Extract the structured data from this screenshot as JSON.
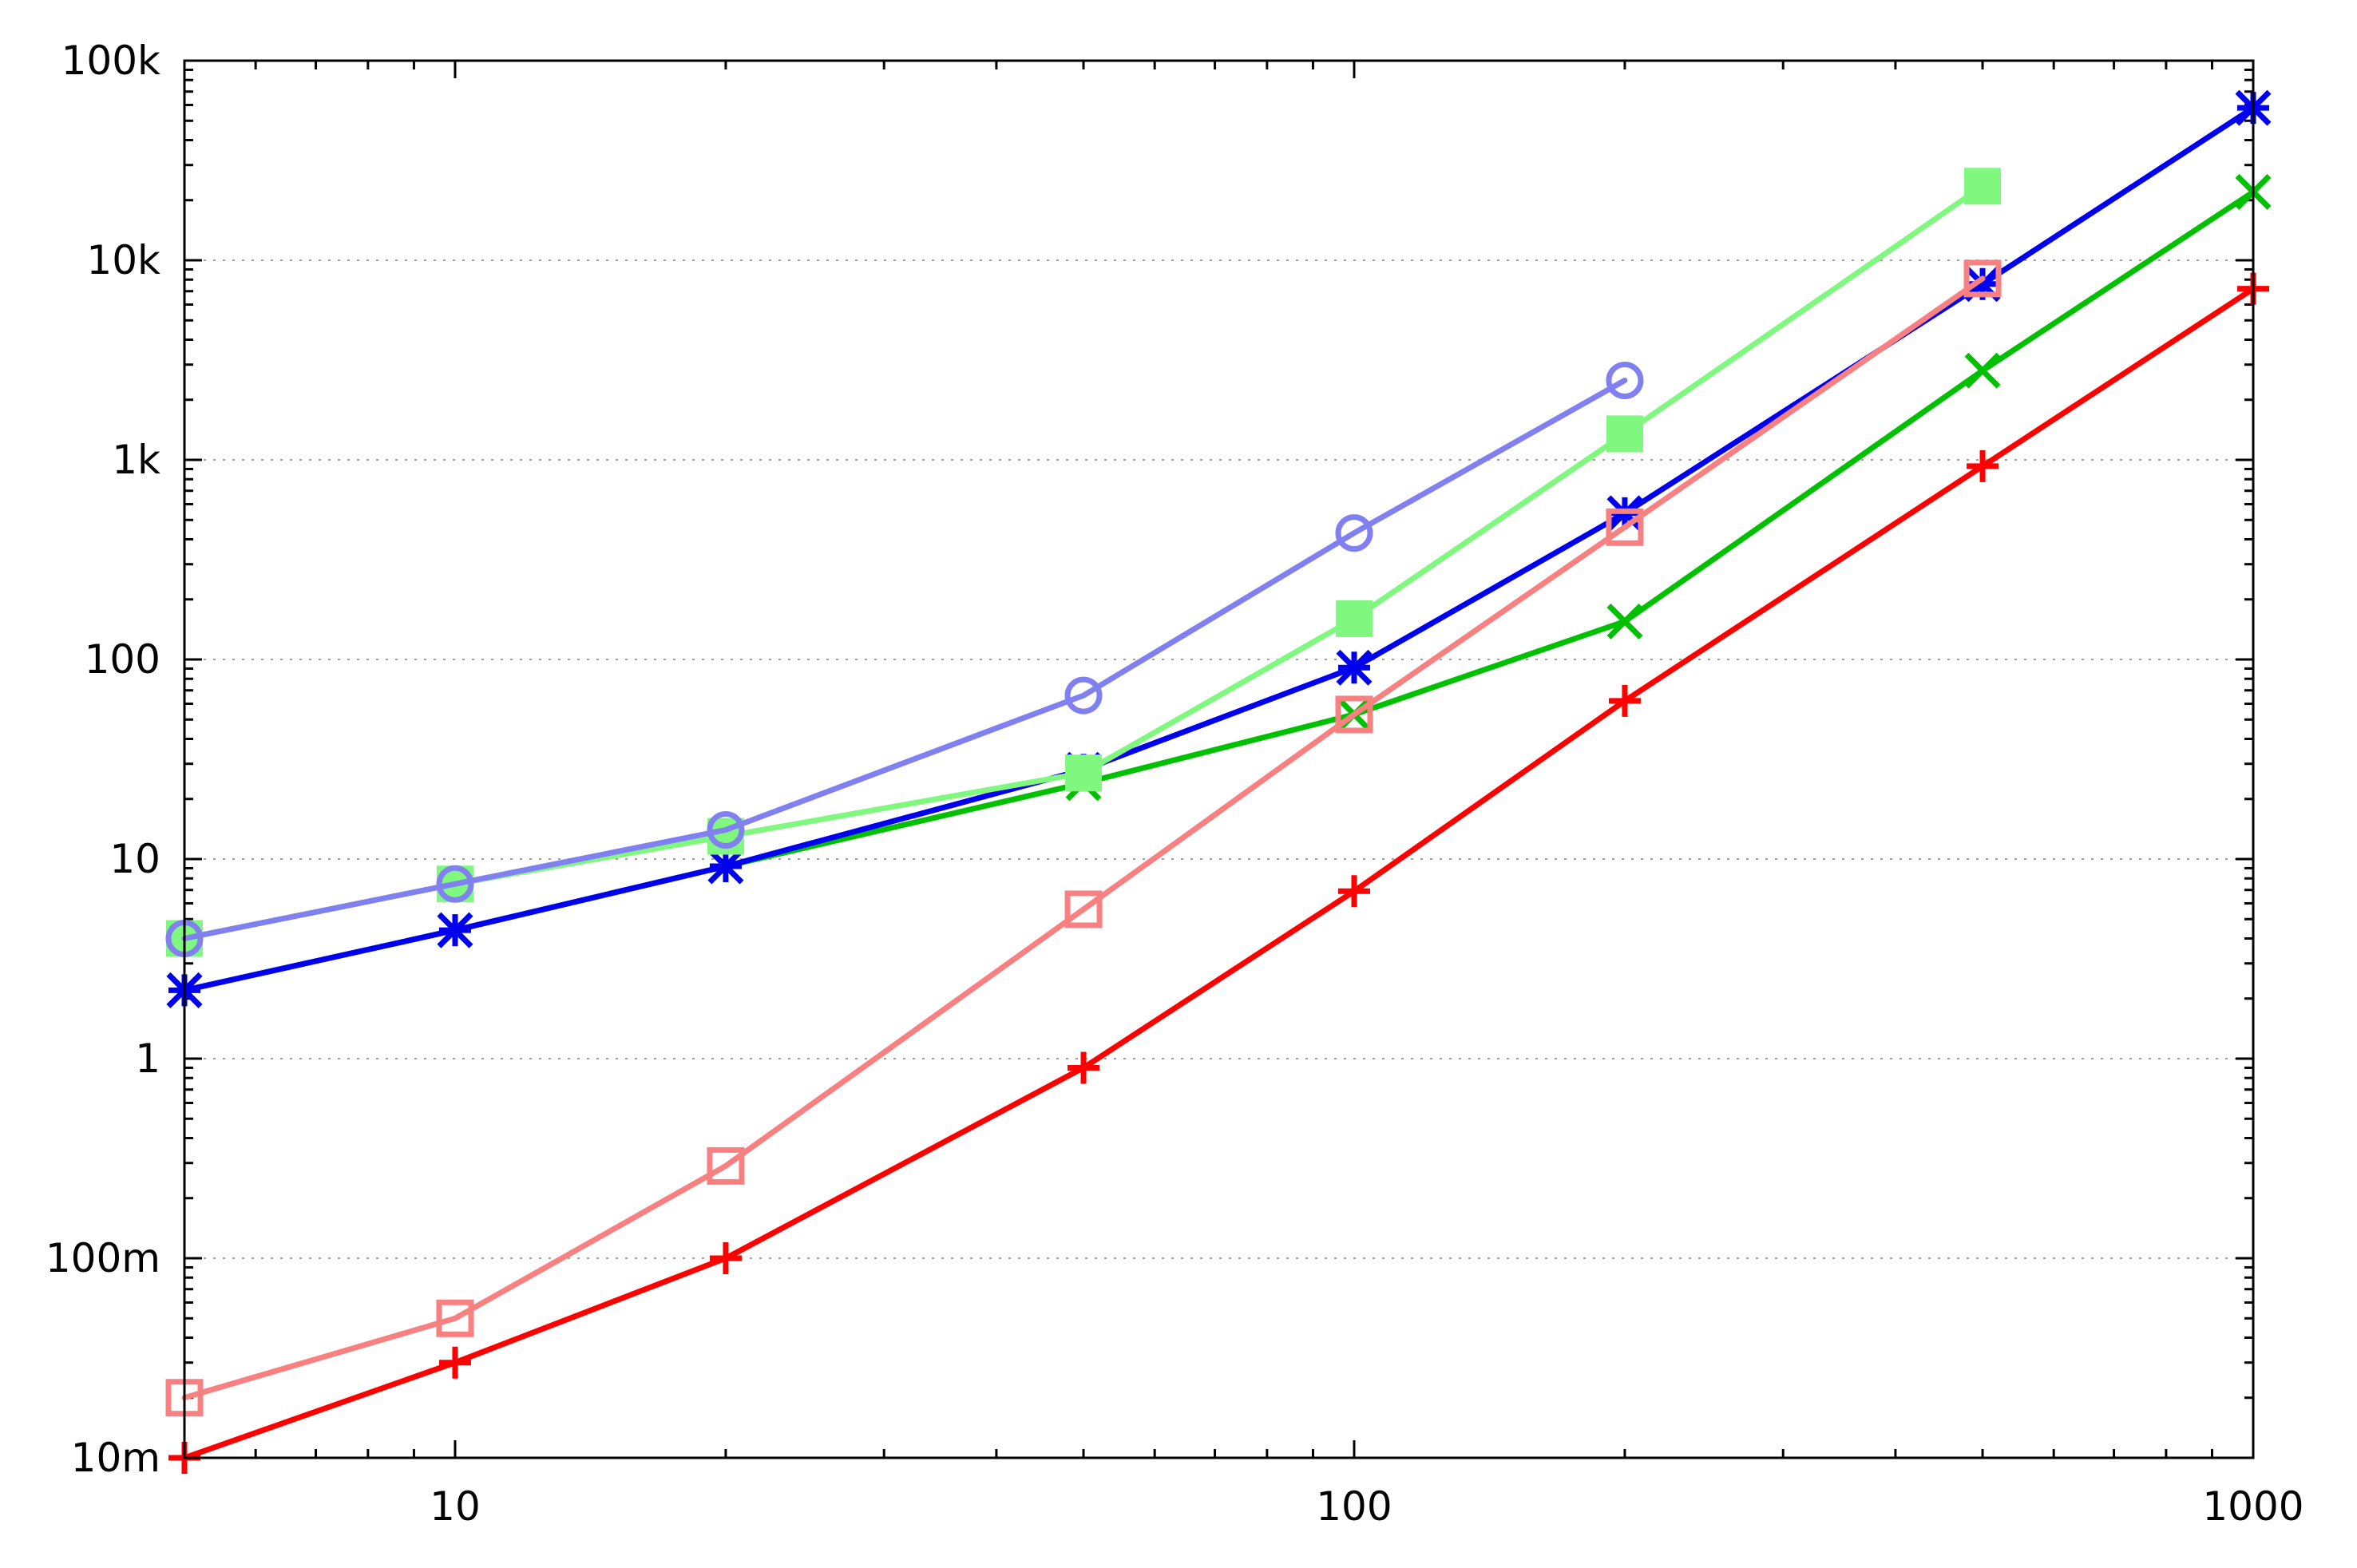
{
  "chart_data": {
    "type": "line",
    "title": "",
    "xlabel": "",
    "ylabel": "",
    "xscale": "log",
    "yscale": "log",
    "xlim": [
      5,
      1000
    ],
    "ylim": [
      0.01,
      100000
    ],
    "grid": "horizontal dotted at major y ticks",
    "legend": "none",
    "x_ticks": [
      {
        "value": 10,
        "label": "10"
      },
      {
        "value": 100,
        "label": "100"
      },
      {
        "value": 1000,
        "label": "1000"
      }
    ],
    "y_ticks": [
      {
        "value": 0.01,
        "label": "10m"
      },
      {
        "value": 0.1,
        "label": "100m"
      },
      {
        "value": 1,
        "label": "1"
      },
      {
        "value": 10,
        "label": "10"
      },
      {
        "value": 100,
        "label": "100"
      },
      {
        "value": 1000,
        "label": "1k"
      },
      {
        "value": 10000,
        "label": "10k"
      },
      {
        "value": 100000,
        "label": "100k"
      }
    ],
    "series": [
      {
        "color": "#ff0000",
        "marker": "plus",
        "x": [
          5,
          10,
          20,
          50,
          100,
          200,
          500,
          1000
        ],
        "y": [
          0.01,
          0.03,
          0.1,
          0.9,
          6.9,
          62,
          930,
          7200
        ]
      },
      {
        "color": "#00c000",
        "marker": "cross",
        "x": [
          5,
          10,
          20,
          50,
          100,
          200,
          500,
          1000
        ],
        "y": [
          2.2,
          4.4,
          9.2,
          24,
          53,
          155,
          2800,
          22000
        ]
      },
      {
        "color": "#0000ee",
        "marker": "asterisk",
        "x": [
          5,
          10,
          20,
          50,
          100,
          200,
          500,
          1000
        ],
        "y": [
          2.2,
          4.4,
          9.2,
          28,
          91,
          540,
          7600,
          58000
        ]
      },
      {
        "color": "#f88080",
        "marker": "open-square",
        "x": [
          5,
          10,
          20,
          50,
          100,
          200,
          500
        ],
        "y": [
          0.02,
          0.05,
          0.29,
          5.6,
          53,
          460,
          8100
        ]
      },
      {
        "color": "#80f880",
        "marker": "filled-square",
        "x": [
          5,
          10,
          20,
          50,
          100,
          200,
          500
        ],
        "y": [
          4,
          7.5,
          13,
          27,
          160,
          1350,
          23500
        ]
      },
      {
        "color": "#8080f0",
        "marker": "open-circle",
        "x": [
          5,
          10,
          20,
          50,
          100,
          200
        ],
        "y": [
          4,
          7.5,
          14,
          66,
          430,
          2500
        ]
      }
    ]
  }
}
